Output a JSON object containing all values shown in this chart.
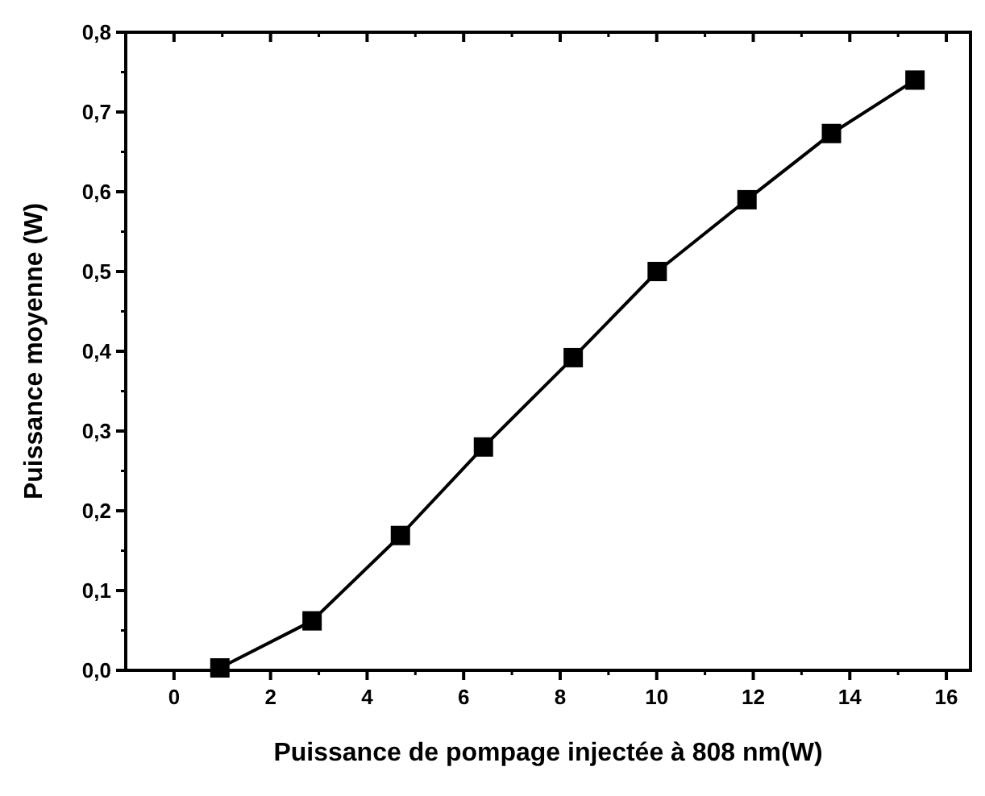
{
  "chart_data": {
    "type": "line",
    "xlabel": "Puissance de pompage injectée à 808 nm(W)",
    "ylabel": "Puissance moyenne  (W)",
    "x": [
      0.95,
      2.86,
      4.69,
      6.41,
      8.27,
      10.01,
      11.87,
      13.62,
      15.35
    ],
    "series": [
      {
        "color": "#000000",
        "values": [
          0.003,
          0.062,
          0.169,
          0.28,
          0.392,
          0.5,
          0.59,
          0.673,
          0.74
        ]
      }
    ],
    "xlim": [
      -1,
      16.5
    ],
    "xticks": [
      0,
      2,
      4,
      6,
      8,
      10,
      12,
      14,
      16
    ],
    "ylim": [
      0,
      0.8
    ],
    "yticks": [
      {
        "value": 0,
        "label": "0,0"
      },
      {
        "value": 0.1,
        "label": "0,1"
      },
      {
        "value": 0.2,
        "label": "0,2"
      },
      {
        "value": 0.3,
        "label": "0,3"
      },
      {
        "value": 0.4,
        "label": "0,4"
      },
      {
        "value": 0.5,
        "label": "0,5"
      },
      {
        "value": 0.6,
        "label": "0,6"
      },
      {
        "value": 0.7,
        "label": "0,7"
      },
      {
        "value": 0.8,
        "label": "0,8"
      }
    ],
    "marker": "square",
    "line_style": "solid",
    "grid": false
  }
}
